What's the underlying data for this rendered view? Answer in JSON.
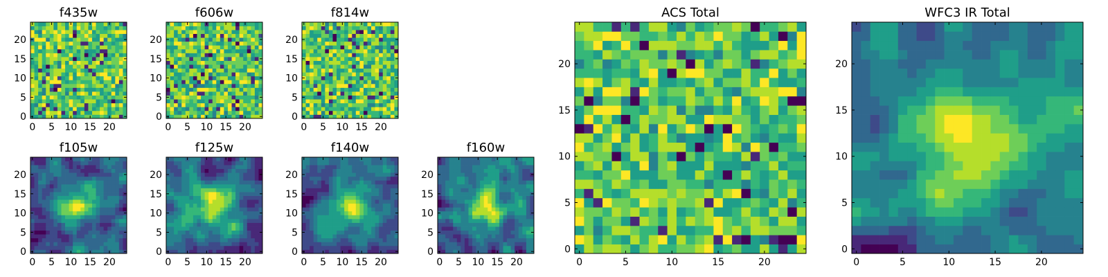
{
  "chart_data": [
    {
      "type": "heatmap",
      "title": "f435w",
      "xticks": [
        0,
        5,
        10,
        15,
        20
      ],
      "yticks": [
        0,
        5,
        10,
        15,
        20
      ],
      "grid_size": 25,
      "colormap": "viridis",
      "pattern": "noise",
      "seed": 11
    },
    {
      "type": "heatmap",
      "title": "f606w",
      "xticks": [
        0,
        5,
        10,
        15,
        20
      ],
      "yticks": [
        0,
        5,
        10,
        15,
        20
      ],
      "grid_size": 25,
      "colormap": "viridis",
      "pattern": "noise",
      "seed": 23
    },
    {
      "type": "heatmap",
      "title": "f814w",
      "xticks": [
        0,
        5,
        10,
        15,
        20
      ],
      "yticks": [
        0,
        5,
        10,
        15,
        20
      ],
      "grid_size": 25,
      "colormap": "viridis",
      "pattern": "noise",
      "seed": 37
    },
    {
      "type": "heatmap",
      "title": "f105w",
      "xticks": [
        0,
        5,
        10,
        15,
        20
      ],
      "yticks": [
        0,
        5,
        10,
        15,
        20
      ],
      "grid_size": 25,
      "colormap": "viridis",
      "pattern": "smooth",
      "seed": 41
    },
    {
      "type": "heatmap",
      "title": "f125w",
      "xticks": [
        0,
        5,
        10,
        15,
        20
      ],
      "yticks": [
        0,
        5,
        10,
        15,
        20
      ],
      "grid_size": 25,
      "colormap": "viridis",
      "pattern": "smooth",
      "seed": 53
    },
    {
      "type": "heatmap",
      "title": "f140w",
      "xticks": [
        0,
        5,
        10,
        15,
        20
      ],
      "yticks": [
        0,
        5,
        10,
        15,
        20
      ],
      "grid_size": 25,
      "colormap": "viridis",
      "pattern": "smooth",
      "seed": 67
    },
    {
      "type": "heatmap",
      "title": "f160w",
      "xticks": [
        0,
        5,
        10,
        15,
        20
      ],
      "yticks": [
        0,
        5,
        10,
        15,
        20
      ],
      "grid_size": 25,
      "colormap": "viridis",
      "pattern": "smooth",
      "seed": 79
    },
    {
      "type": "heatmap",
      "title": "ACS Total",
      "xticks": [
        0,
        5,
        10,
        15,
        20
      ],
      "yticks": [
        0,
        5,
        10,
        15,
        20
      ],
      "grid_size": 25,
      "colormap": "viridis",
      "pattern": "noise",
      "seed": 83
    },
    {
      "type": "heatmap",
      "title": "WFC3 IR Total",
      "xticks": [
        0,
        5,
        10,
        15,
        20
      ],
      "yticks": [
        0,
        5,
        10,
        15,
        20
      ],
      "grid_size": 25,
      "colormap": "viridis",
      "pattern": "smooth",
      "seed": 97
    }
  ],
  "colors": {
    "viridis": [
      "#440154",
      "#482878",
      "#3e4a89",
      "#31688e",
      "#26828e",
      "#1f9e89",
      "#35b779",
      "#6ece58",
      "#b5de2b",
      "#fde725"
    ],
    "frame": "#000000",
    "background": "#ffffff"
  }
}
